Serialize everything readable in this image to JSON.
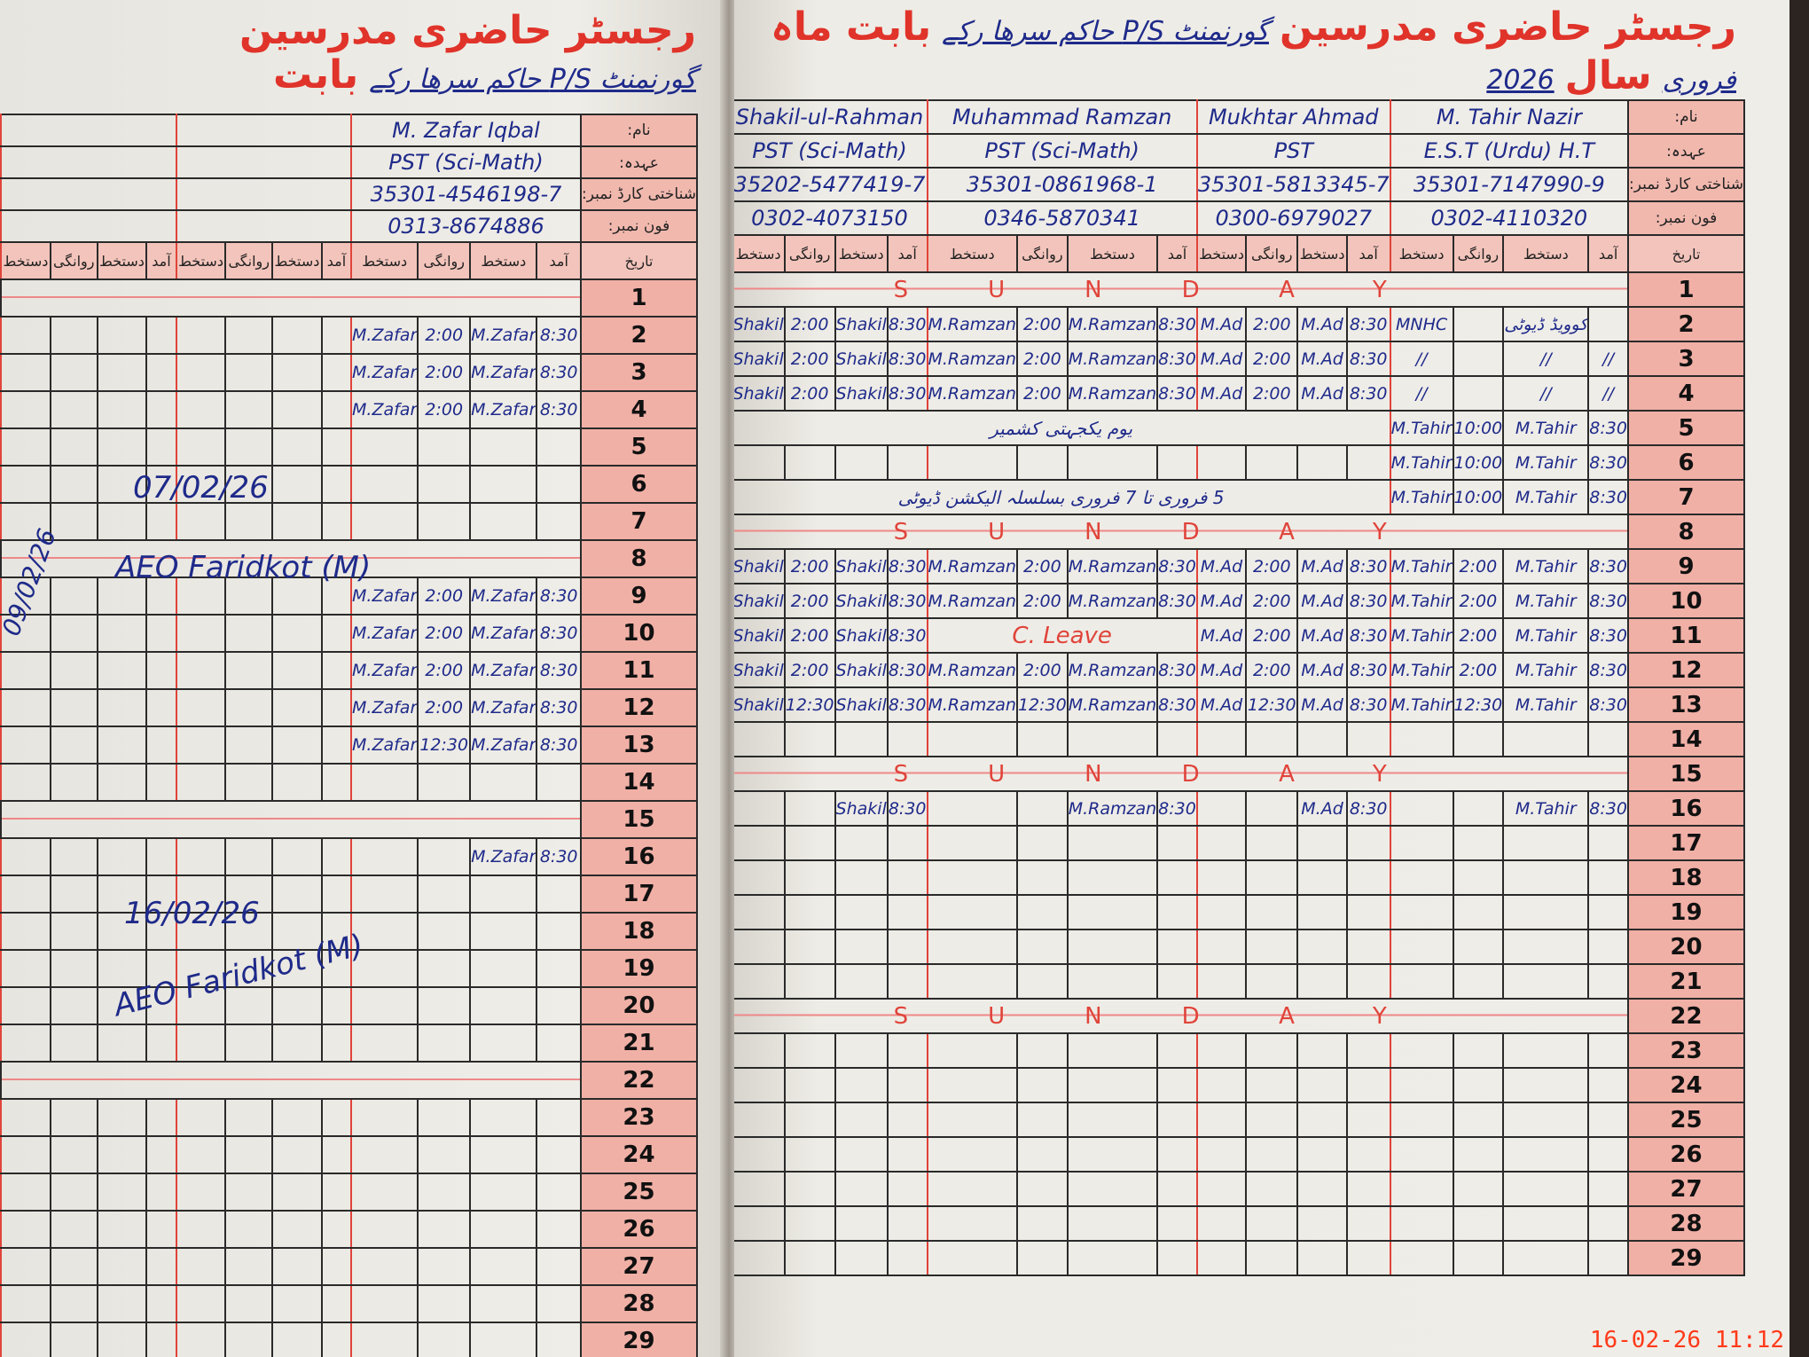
{
  "left_page": {
    "title": "رجسٹر حاضری مدرسین",
    "title_handwritten": "گورنمنٹ P/S حاکم سرھا رکے",
    "title_tail": "بابت",
    "info_labels": [
      "نام:",
      "عہدہ:",
      "شناختی کارڈ نمبر:",
      "فون نمبر:"
    ],
    "date_label": "تاریخ",
    "column_labels": [
      "آمد",
      "دستخط",
      "روانگی",
      "دستخط"
    ],
    "teachers": [
      {
        "name": "M. Zafar Iqbal",
        "designation": "PST (Sci-Math)",
        "cnic": "35301-4546198-7",
        "phone": "0313-8674886"
      },
      {
        "name": "",
        "designation": "",
        "cnic": "",
        "phone": ""
      },
      {
        "name": "",
        "designation": "",
        "cnic": "",
        "phone": ""
      }
    ],
    "rows": [
      {
        "date": "1",
        "sunday": true
      },
      {
        "date": "2",
        "cells": [
          [
            "8:30",
            "M.Zafar",
            "2:00",
            "M.Zafar"
          ]
        ]
      },
      {
        "date": "3",
        "cells": [
          [
            "8:30",
            "M.Zafar",
            "2:00",
            "M.Zafar"
          ]
        ]
      },
      {
        "date": "4",
        "cells": [
          [
            "8:30",
            "M.Zafar",
            "2:00",
            "M.Zafar"
          ]
        ]
      },
      {
        "date": "5"
      },
      {
        "date": "6"
      },
      {
        "date": "7"
      },
      {
        "date": "8",
        "sunday": true
      },
      {
        "date": "9",
        "cells": [
          [
            "8:30",
            "M.Zafar",
            "2:00",
            "M.Zafar"
          ]
        ]
      },
      {
        "date": "10",
        "cells": [
          [
            "8:30",
            "M.Zafar",
            "2:00",
            "M.Zafar"
          ]
        ]
      },
      {
        "date": "11",
        "cells": [
          [
            "8:30",
            "M.Zafar",
            "2:00",
            "M.Zafar"
          ]
        ]
      },
      {
        "date": "12",
        "cells": [
          [
            "8:30",
            "M.Zafar",
            "2:00",
            "M.Zafar"
          ]
        ]
      },
      {
        "date": "13",
        "cells": [
          [
            "8:30",
            "M.Zafar",
            "12:30",
            "M.Zafar"
          ]
        ]
      },
      {
        "date": "14"
      },
      {
        "date": "15",
        "sunday": true
      },
      {
        "date": "16",
        "cells": [
          [
            "8:30",
            "M.Zafar",
            "",
            ""
          ]
        ]
      },
      {
        "date": "17"
      },
      {
        "date": "18"
      },
      {
        "date": "19"
      },
      {
        "date": "20"
      },
      {
        "date": "21"
      },
      {
        "date": "22",
        "sunday": true
      },
      {
        "date": "23"
      },
      {
        "date": "24"
      },
      {
        "date": "25"
      },
      {
        "date": "26"
      },
      {
        "date": "27"
      },
      {
        "date": "28"
      },
      {
        "date": "29"
      }
    ],
    "annotations": {
      "visit1_date": "07/02/26",
      "visit1_sign": "AEO Faridkot (M)",
      "visit2_date": "16/02/26",
      "visit2_sign": "AEO Faridkot (M)",
      "margin_date": "09/02/26"
    }
  },
  "right_page": {
    "title": "رجسٹر حاضری مدرسین",
    "title_handwritten": "گورنمنٹ P/S حاکم سرھا رکے",
    "title_mid": "بابت ماہ",
    "month_handwritten": "فروری",
    "year_label": "سال",
    "year_handwritten": "2026",
    "info_labels": [
      "نام:",
      "عہدہ:",
      "شناختی کارڈ نمبر:",
      "فون نمبر:"
    ],
    "date_label": "تاریخ",
    "column_labels": [
      "آمد",
      "دستخط",
      "روانگی",
      "دستخط"
    ],
    "sunday_label": "SUNDAY",
    "teachers": [
      {
        "name": "M. Tahir Nazir",
        "designation": "E.S.T (Urdu) H.T",
        "cnic": "35301-7147990-9",
        "phone": "0302-4110320"
      },
      {
        "name": "Mukhtar Ahmad",
        "designation": "PST",
        "cnic": "35301-5813345-7",
        "phone": "0300-6979027"
      },
      {
        "name": "Muhammad Ramzan",
        "designation": "PST (Sci-Math)",
        "cnic": "35301-0861968-1",
        "phone": "0346-5870341"
      },
      {
        "name": "Shakil-ul-Rahman",
        "designation": "PST (Sci-Math)",
        "cnic": "35202-5477419-7",
        "phone": "0302-4073150"
      }
    ],
    "rows": [
      {
        "date": "1",
        "sunday": true
      },
      {
        "date": "2",
        "cells": [
          [
            "",
            "کوویڈ ڈیوٹی",
            "",
            "MNHC"
          ],
          [
            "8:30",
            "M.Ad",
            "2:00",
            "M.Ad"
          ],
          [
            "8:30",
            "M.Ramzan",
            "2:00",
            "M.Ramzan"
          ],
          [
            "8:30",
            "Shakil",
            "2:00",
            "Shakil"
          ]
        ]
      },
      {
        "date": "3",
        "cells": [
          [
            "//",
            "//",
            "",
            "//"
          ],
          [
            "8:30",
            "M.Ad",
            "2:00",
            "M.Ad"
          ],
          [
            "8:30",
            "M.Ramzan",
            "2:00",
            "M.Ramzan"
          ],
          [
            "8:30",
            "Shakil",
            "2:00",
            "Shakil"
          ]
        ]
      },
      {
        "date": "4",
        "cells": [
          [
            "//",
            "//",
            "",
            "//"
          ],
          [
            "8:30",
            "M.Ad",
            "2:00",
            "M.Ad"
          ],
          [
            "8:30",
            "M.Ramzan",
            "2:00",
            "M.Ramzan"
          ],
          [
            "8:30",
            "Shakil",
            "2:00",
            "Shakil"
          ]
        ]
      },
      {
        "date": "5",
        "cells": [
          [
            "8:30",
            "M.Tahir",
            "10:00",
            "M.Tahir"
          ]
        ],
        "note": "یوم یکجہتی کشمیر"
      },
      {
        "date": "6",
        "cells": [
          [
            "8:30",
            "M.Tahir",
            "10:00",
            "M.Tahir"
          ]
        ]
      },
      {
        "date": "7",
        "cells": [
          [
            "8:30",
            "M.Tahir",
            "10:00",
            "M.Tahir"
          ]
        ],
        "note": "5 فروری تا 7 فروری بسلسلہ الیکشن ڈیوٹی"
      },
      {
        "date": "8",
        "sunday": true
      },
      {
        "date": "9",
        "cells": [
          [
            "8:30",
            "M.Tahir",
            "2:00",
            "M.Tahir"
          ],
          [
            "8:30",
            "M.Ad",
            "2:00",
            "M.Ad"
          ],
          [
            "8:30",
            "M.Ramzan",
            "2:00",
            "M.Ramzan"
          ],
          [
            "8:30",
            "Shakil",
            "2:00",
            "Shakil"
          ]
        ]
      },
      {
        "date": "10",
        "cells": [
          [
            "8:30",
            "M.Tahir",
            "2:00",
            "M.Tahir"
          ],
          [
            "8:30",
            "M.Ad",
            "2:00",
            "M.Ad"
          ],
          [
            "8:30",
            "M.Ramzan",
            "2:00",
            "M.Ramzan"
          ],
          [
            "8:30",
            "Shakil",
            "2:00",
            "Shakil"
          ]
        ]
      },
      {
        "date": "11",
        "cells": [
          [
            "8:30",
            "M.Tahir",
            "2:00",
            "M.Tahir"
          ],
          [
            "8:30",
            "M.Ad",
            "2:00",
            "M.Ad"
          ],
          null,
          [
            "8:30",
            "Shakil",
            "2:00",
            "Shakil"
          ]
        ],
        "leave": "C. Leave"
      },
      {
        "date": "12",
        "cells": [
          [
            "8:30",
            "M.Tahir",
            "2:00",
            "M.Tahir"
          ],
          [
            "8:30",
            "M.Ad",
            "2:00",
            "M.Ad"
          ],
          [
            "8:30",
            "M.Ramzan",
            "2:00",
            "M.Ramzan"
          ],
          [
            "8:30",
            "Shakil",
            "2:00",
            "Shakil"
          ]
        ]
      },
      {
        "date": "13",
        "cells": [
          [
            "8:30",
            "M.Tahir",
            "12:30",
            "M.Tahir"
          ],
          [
            "8:30",
            "M.Ad",
            "12:30",
            "M.Ad"
          ],
          [
            "8:30",
            "M.Ramzan",
            "12:30",
            "M.Ramzan"
          ],
          [
            "8:30",
            "Shakil",
            "12:30",
            "Shakil"
          ]
        ]
      },
      {
        "date": "14"
      },
      {
        "date": "15",
        "sunday": true
      },
      {
        "date": "16",
        "cells": [
          [
            "8:30",
            "M.Tahir",
            "",
            ""
          ],
          [
            "8:30",
            "M.Ad",
            "",
            ""
          ],
          [
            "8:30",
            "M.Ramzan",
            "",
            ""
          ],
          [
            "8:30",
            "Shakil",
            "",
            ""
          ]
        ]
      },
      {
        "date": "17"
      },
      {
        "date": "18"
      },
      {
        "date": "19"
      },
      {
        "date": "20"
      },
      {
        "date": "21"
      },
      {
        "date": "22",
        "sunday": true
      },
      {
        "date": "23"
      },
      {
        "date": "24"
      },
      {
        "date": "25"
      },
      {
        "date": "26"
      },
      {
        "date": "27"
      },
      {
        "date": "28"
      },
      {
        "date": "29",
        "sunday": false
      }
    ]
  },
  "camera_timestamp": "16-02-26 11:12",
  "colors": {
    "ink_blue": "#1e2a8a",
    "print_red": "#e0332a",
    "header_pink": "#f3c4bb"
  }
}
